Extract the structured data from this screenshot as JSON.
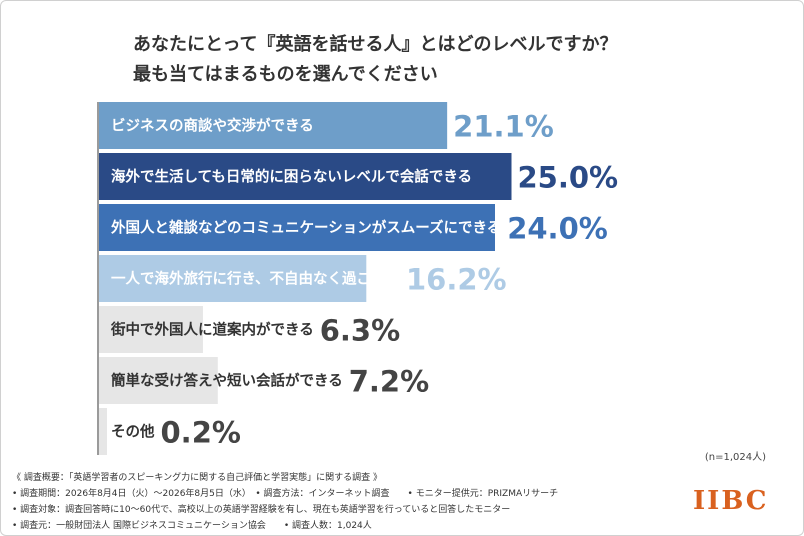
{
  "title_line1": "あなたにとって『英語を話せる人』とはどのレベルですか？",
  "title_line2": "最も当てはまるものを選んでください",
  "sample_size": "(n=1,024人)",
  "notes": [
    "《 調査概要：「英語学習者のスピーキング力に関する自己評価と学習実態」に関する調査 》",
    "• 調査期間：2026年8月4日（火）〜2026年8月5日（水）　• 調査方法：インターネット調査　　• モニター提供元：PRIZMAリサーチ",
    "• 調査対象：調査回答時に10〜60代で、高校以上の英語学習経験を有し、現在も英語学習を行っていると回答したモニター",
    "• 調査元：一般財団法人 国際ビジネスコミュニケーション協会　　• 調査人数：1,024人"
  ],
  "logo_text": "IIBC",
  "chart_data": {
    "type": "bar",
    "orientation": "horizontal",
    "title": "あなたにとって『英語を話せる人』とはどのレベルですか？ 最も当てはまるものを選んでください",
    "categories": [
      "ビジネスの商談や交渉ができる",
      "海外で生活しても日常的に困らないレベルで会話できる",
      "外国人と雑談などのコミュニケーションがスムーズにできる",
      "一人で海外旅行に行き、不自由なく過ごせる",
      "街中で外国人に道案内ができる",
      "簡単な受け答えや短い会話ができる",
      "その他"
    ],
    "values": [
      21.1,
      25.0,
      24.0,
      16.2,
      6.3,
      7.2,
      0.2
    ],
    "value_labels": [
      "21.1%",
      "25.0%",
      "24.0%",
      "16.2%",
      "6.3%",
      "7.2%",
      "0.2%"
    ],
    "unit": "%",
    "xlim": [
      0,
      100
    ],
    "bar_colors": [
      "#6e9ec9",
      "#2a4a86",
      "#3d71b5",
      "#aecbe5",
      "#e6e6e6",
      "#e6e6e6",
      "#e6e6e6"
    ],
    "label_colors": [
      "#6e9ec9",
      "#2a4a86",
      "#3d71b5",
      "#aecbe5",
      "#444444",
      "#444444",
      "#444444"
    ],
    "text_colors": [
      "#ffffff",
      "#ffffff",
      "#ffffff",
      "#ffffff",
      "#333333",
      "#333333",
      "#333333"
    ],
    "axis_line": true,
    "grid": false
  }
}
